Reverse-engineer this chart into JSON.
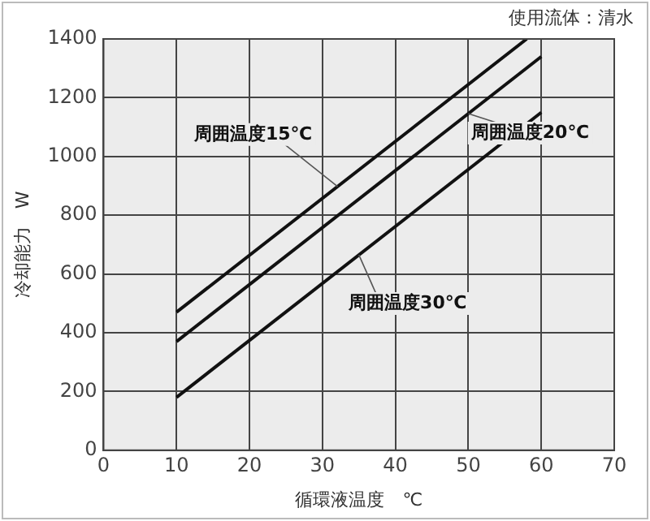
{
  "chart_data": {
    "type": "line",
    "xlabel": "循環液温度　℃",
    "ylabel": "冷却能力　W",
    "annotations": [
      "使用流体：清水"
    ],
    "xlim": [
      0,
      70
    ],
    "xticks": [
      0,
      10,
      20,
      30,
      40,
      50,
      60,
      70
    ],
    "ylim": [
      0,
      1400
    ],
    "yticks": [
      0,
      200,
      400,
      600,
      800,
      1000,
      1200,
      1400
    ],
    "grid": true,
    "legend": false,
    "marker": "none",
    "line_style": "solid",
    "series": [
      {
        "name": "周囲温度15℃",
        "color": "#111111",
        "x": [
          10,
          58
        ],
        "values": [
          470,
          1400
        ]
      },
      {
        "name": "周囲温度20℃",
        "color": "#111111",
        "x": [
          10,
          60
        ],
        "values": [
          370,
          1340
        ]
      },
      {
        "name": "周囲温度30℃",
        "color": "#111111",
        "x": [
          10,
          60
        ],
        "values": [
          180,
          1150
        ]
      }
    ]
  }
}
